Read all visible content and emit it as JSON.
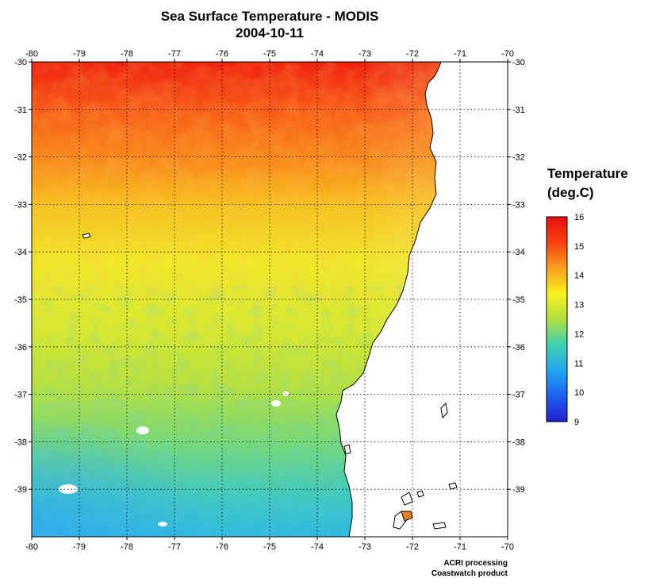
{
  "title": "Sea Surface Temperature - MODIS",
  "date": "2004-10-11",
  "map": {
    "lon_ticks": [
      -80,
      -79,
      -78,
      -77,
      -76,
      -75,
      -74,
      -73,
      -72,
      -71,
      -70
    ],
    "lat_ticks": [
      -30,
      -31,
      -32,
      -33,
      -34,
      -35,
      -36,
      -37,
      -38,
      -39
    ],
    "lon_range": [
      -80,
      -70
    ],
    "lat_range": [
      -40,
      -30
    ],
    "grid": "dotted",
    "land_color": "#ffffff",
    "coastline_color": "#000000"
  },
  "colorbar": {
    "title_line1": "Temperature",
    "title_line2": "(deg.C)",
    "min": 9,
    "max": 16,
    "ticks": [
      16,
      15,
      14,
      13,
      12,
      11,
      10,
      9
    ],
    "colors": [
      "#2020d0",
      "#1f5ff0",
      "#20a8f0",
      "#40d0b0",
      "#b0e040",
      "#f8f020",
      "#f8a020",
      "#f84010",
      "#e81010"
    ]
  },
  "credits": {
    "line1": "ACRI processing",
    "line2": "Coastwatch product"
  }
}
